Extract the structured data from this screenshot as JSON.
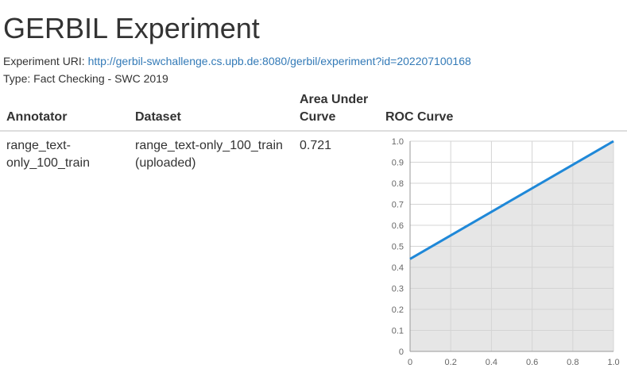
{
  "page": {
    "title": "GERBIL Experiment",
    "uri_label": "Experiment URI:",
    "uri": "http://gerbil-swchallenge.cs.upb.de:8080/gerbil/experiment?id=202207100168",
    "type_label": "Type:",
    "type": "Fact Checking - SWC 2019"
  },
  "table": {
    "columns": [
      "Annotator",
      "Dataset",
      "Area Under Curve",
      "ROC Curve"
    ],
    "column_lines": {
      "auc": [
        "Area Under",
        "Curve"
      ]
    },
    "rows": [
      {
        "annotator_lines": [
          "range_text-",
          "only_100_train"
        ],
        "dataset_lines": [
          "range_text-only_100_train",
          "(uploaded)"
        ],
        "auc": "0.721"
      }
    ]
  },
  "colors": {
    "link": "#337ab7",
    "curve": "#1f88d8",
    "area": "#e6e6e6"
  },
  "chart_data": {
    "type": "area",
    "title": "",
    "xlabel": "",
    "ylabel": "",
    "xlim": [
      0,
      1
    ],
    "ylim": [
      0,
      1
    ],
    "x_ticks": [
      "0",
      "0.2",
      "0.4",
      "0.6",
      "0.8",
      "1.0"
    ],
    "y_ticks": [
      "0",
      "0.1",
      "0.2",
      "0.3",
      "0.4",
      "0.5",
      "0.6",
      "0.7",
      "0.8",
      "0.9",
      "1.0"
    ],
    "grid": true,
    "series": [
      {
        "x": [
          0,
          1
        ],
        "y": [
          0.44,
          1.0
        ]
      }
    ]
  }
}
